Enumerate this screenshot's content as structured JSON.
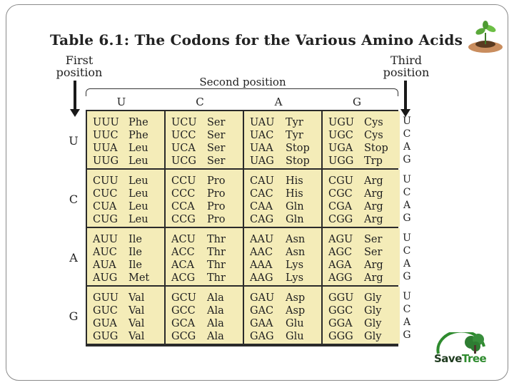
{
  "title": "Table 6.1: The Codons for the Various Amino Acids",
  "labels": {
    "first_line1": "First",
    "first_line2": "position",
    "third_line1": "Third",
    "third_line2": "position",
    "second": "Second position"
  },
  "columns": [
    "U",
    "C",
    "A",
    "G"
  ],
  "rows": [
    "U",
    "C",
    "A",
    "G"
  ],
  "third_bases": [
    "U",
    "C",
    "A",
    "G"
  ],
  "grid": [
    [
      [
        [
          "UUU",
          "Phe"
        ],
        [
          "UUC",
          "Phe"
        ],
        [
          "UUA",
          "Leu"
        ],
        [
          "UUG",
          "Leu"
        ]
      ],
      [
        [
          "UCU",
          "Ser"
        ],
        [
          "UCC",
          "Ser"
        ],
        [
          "UCA",
          "Ser"
        ],
        [
          "UCG",
          "Ser"
        ]
      ],
      [
        [
          "UAU",
          "Tyr"
        ],
        [
          "UAC",
          "Tyr"
        ],
        [
          "UAA",
          "Stop"
        ],
        [
          "UAG",
          "Stop"
        ]
      ],
      [
        [
          "UGU",
          "Cys"
        ],
        [
          "UGC",
          "Cys"
        ],
        [
          "UGA",
          "Stop"
        ],
        [
          "UGG",
          "Trp"
        ]
      ]
    ],
    [
      [
        [
          "CUU",
          "Leu"
        ],
        [
          "CUC",
          "Leu"
        ],
        [
          "CUA",
          "Leu"
        ],
        [
          "CUG",
          "Leu"
        ]
      ],
      [
        [
          "CCU",
          "Pro"
        ],
        [
          "CCC",
          "Pro"
        ],
        [
          "CCA",
          "Pro"
        ],
        [
          "CCG",
          "Pro"
        ]
      ],
      [
        [
          "CAU",
          "His"
        ],
        [
          "CAC",
          "His"
        ],
        [
          "CAA",
          "Gln"
        ],
        [
          "CAG",
          "Gln"
        ]
      ],
      [
        [
          "CGU",
          "Arg"
        ],
        [
          "CGC",
          "Arg"
        ],
        [
          "CGA",
          "Arg"
        ],
        [
          "CGG",
          "Arg"
        ]
      ]
    ],
    [
      [
        [
          "AUU",
          "Ile"
        ],
        [
          "AUC",
          "Ile"
        ],
        [
          "AUA",
          "Ile"
        ],
        [
          "AUG",
          "Met"
        ]
      ],
      [
        [
          "ACU",
          "Thr"
        ],
        [
          "ACC",
          "Thr"
        ],
        [
          "ACA",
          "Thr"
        ],
        [
          "ACG",
          "Thr"
        ]
      ],
      [
        [
          "AAU",
          "Asn"
        ],
        [
          "AAC",
          "Asn"
        ],
        [
          "AAA",
          "Lys"
        ],
        [
          "AAG",
          "Lys"
        ]
      ],
      [
        [
          "AGU",
          "Ser"
        ],
        [
          "AGC",
          "Ser"
        ],
        [
          "AGA",
          "Arg"
        ],
        [
          "AGG",
          "Arg"
        ]
      ]
    ],
    [
      [
        [
          "GUU",
          "Val"
        ],
        [
          "GUC",
          "Val"
        ],
        [
          "GUA",
          "Val"
        ],
        [
          "GUG",
          "Val"
        ]
      ],
      [
        [
          "GCU",
          "Ala"
        ],
        [
          "GCC",
          "Ala"
        ],
        [
          "GCA",
          "Ala"
        ],
        [
          "GCG",
          "Ala"
        ]
      ],
      [
        [
          "GAU",
          "Asp"
        ],
        [
          "GAC",
          "Asp"
        ],
        [
          "GAA",
          "Glu"
        ],
        [
          "GAG",
          "Glu"
        ]
      ],
      [
        [
          "GGU",
          "Gly"
        ],
        [
          "GGC",
          "Gly"
        ],
        [
          "GGA",
          "Gly"
        ],
        [
          "GGG",
          "Gly"
        ]
      ]
    ]
  ],
  "logo": {
    "word1": "Save",
    "word2": "Tree"
  },
  "icons": {
    "plant": "plant-in-hands-icon",
    "logo": "save-tree-logo-icon"
  },
  "colors": {
    "cell_bg": "#f4ecb8",
    "grid_line": "#2a2a2a",
    "logo_green": "#2e8b2e"
  }
}
